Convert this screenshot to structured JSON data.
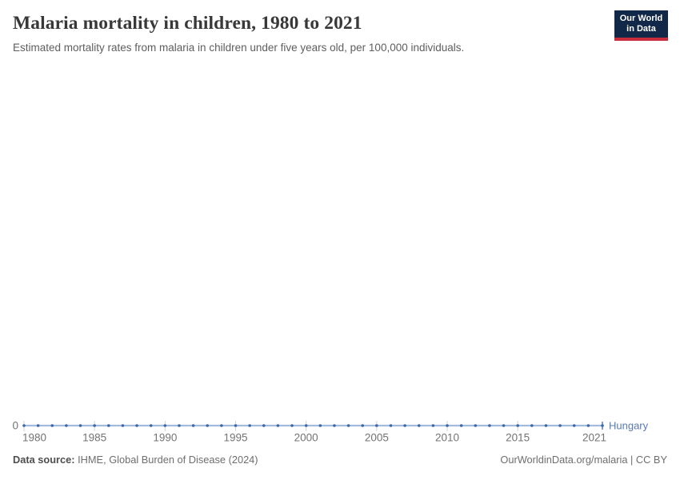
{
  "header": {
    "title": "Malaria mortality in children, 1980 to 2021",
    "subtitle": "Estimated mortality rates from malaria in children under five years old, per 100,000 individuals."
  },
  "logo": {
    "line1": "Our World",
    "line2": "in Data",
    "bg_color": "#112848",
    "bar_color": "#c82d3c"
  },
  "footer": {
    "source_label": "Data source:",
    "source_value": " IHME, Global Burden of Disease (2024)",
    "url_text": "OurWorldinData.org/malaria | CC BY"
  },
  "chart_data": {
    "type": "line",
    "title": "Malaria mortality in children, 1980 to 2021",
    "subtitle": "Estimated mortality rates from malaria in children under five years old, per 100,000 individuals.",
    "entity": "Hungary",
    "x": [
      1980,
      1981,
      1982,
      1983,
      1984,
      1985,
      1986,
      1987,
      1988,
      1989,
      1990,
      1991,
      1992,
      1993,
      1994,
      1995,
      1996,
      1997,
      1998,
      1999,
      2000,
      2001,
      2002,
      2003,
      2004,
      2005,
      2006,
      2007,
      2008,
      2009,
      2010,
      2011,
      2012,
      2013,
      2014,
      2015,
      2016,
      2017,
      2018,
      2019,
      2020,
      2021
    ],
    "series": [
      {
        "name": "Hungary",
        "values": [
          0,
          0,
          0,
          0,
          0,
          0,
          0,
          0,
          0,
          0,
          0,
          0,
          0,
          0,
          0,
          0,
          0,
          0,
          0,
          0,
          0,
          0,
          0,
          0,
          0,
          0,
          0,
          0,
          0,
          0,
          0,
          0,
          0,
          0,
          0,
          0,
          0,
          0,
          0,
          0,
          0,
          0
        ]
      }
    ],
    "x_ticks": [
      1980,
      1985,
      1990,
      1995,
      2000,
      2005,
      2010,
      2015,
      2021
    ],
    "y_ticks": [
      0
    ],
    "xlabel": "",
    "ylabel": "",
    "ylim": [
      0,
      0
    ],
    "grid": false,
    "legend_position": "right-of-line-end",
    "colors": {
      "line": "#a3bcde",
      "point": "#3d68a6",
      "entity_label": "#5879b4",
      "tick": "#d2d2d2",
      "axis_text": "#737373"
    }
  }
}
